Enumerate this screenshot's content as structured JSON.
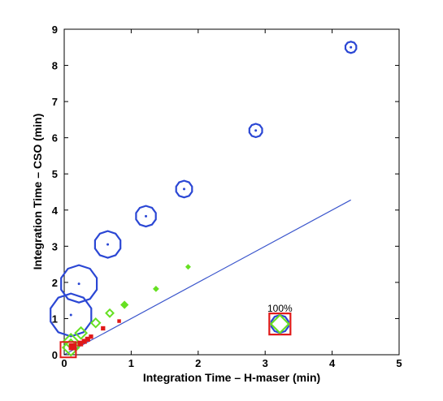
{
  "chart_data": {
    "type": "scatter",
    "title": "",
    "xlabel": "Integration Time – H-maser (min)",
    "ylabel": "Integration Time – CSO (min)",
    "xlim": [
      0,
      5
    ],
    "ylim": [
      0,
      9
    ],
    "xticks": [
      0,
      1,
      2,
      3,
      4,
      5
    ],
    "yticks": [
      0,
      1,
      2,
      3,
      4,
      5,
      6,
      7,
      8,
      9
    ],
    "grid": false,
    "colors": {
      "blue": "#2b47d4",
      "green": "#66e022",
      "red": "#e01818",
      "line": "#3a55cc"
    },
    "series": [
      {
        "marker": "circle",
        "color": "blue",
        "points": [
          {
            "x": 4.28,
            "y": 8.5,
            "size": 0.17
          },
          {
            "x": 2.86,
            "y": 6.2,
            "size": 0.2
          },
          {
            "x": 1.79,
            "y": 4.58,
            "size": 0.25
          },
          {
            "x": 1.22,
            "y": 3.83,
            "size": 0.31
          },
          {
            "x": 0.65,
            "y": 3.05,
            "size": 0.4
          },
          {
            "x": 0.22,
            "y": 1.96,
            "size": 0.56
          },
          {
            "x": 0.1,
            "y": 1.1,
            "size": 0.64
          }
        ]
      },
      {
        "marker": "diamond",
        "color": "green",
        "points": [
          {
            "x": 1.85,
            "y": 2.43,
            "size": 0.05
          },
          {
            "x": 1.37,
            "y": 1.82,
            "size": 0.06
          },
          {
            "x": 0.9,
            "y": 1.38,
            "size": 0.09
          },
          {
            "x": 0.68,
            "y": 1.15,
            "size": 0.11
          },
          {
            "x": 0.47,
            "y": 0.88,
            "size": 0.13
          },
          {
            "x": 0.25,
            "y": 0.6,
            "size": 0.17
          },
          {
            "x": 0.1,
            "y": 0.37,
            "size": 0.22
          },
          {
            "x": 0.1,
            "y": 0.2,
            "size": 0.24
          }
        ]
      },
      {
        "marker": "square",
        "color": "red",
        "points": [
          {
            "x": 0.82,
            "y": 0.93,
            "size": 0.03
          },
          {
            "x": 0.58,
            "y": 0.73,
            "size": 0.04
          },
          {
            "x": 0.4,
            "y": 0.5,
            "size": 0.04
          },
          {
            "x": 0.35,
            "y": 0.43,
            "size": 0.05
          },
          {
            "x": 0.3,
            "y": 0.37,
            "size": 0.05
          },
          {
            "x": 0.24,
            "y": 0.31,
            "size": 0.06
          },
          {
            "x": 0.12,
            "y": 0.22,
            "size": 0.08
          },
          {
            "x": 0.06,
            "y": 0.14,
            "size": 0.23
          }
        ]
      }
    ],
    "reference_line": {
      "x": [
        0,
        4.28
      ],
      "y": [
        0,
        4.28
      ],
      "color": "line"
    },
    "legend": {
      "label": "100%",
      "x": 3.22,
      "y": 0.85,
      "markers": [
        "square",
        "circle",
        "diamond"
      ]
    }
  }
}
